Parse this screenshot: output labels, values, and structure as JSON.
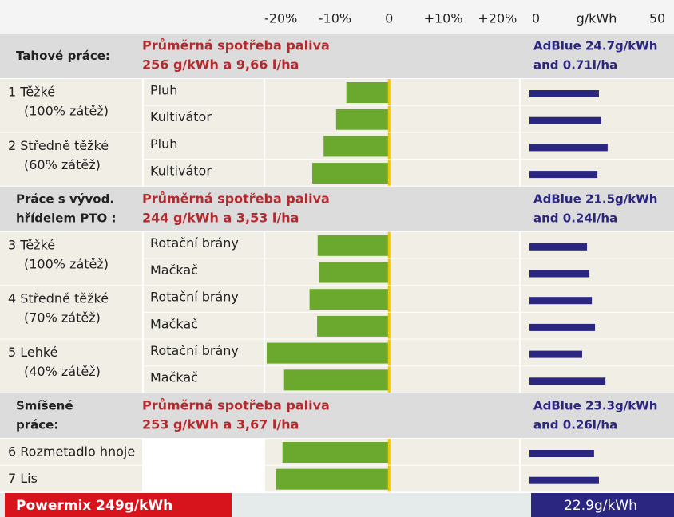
{
  "chart_data": {
    "type": "bar",
    "xticks": [
      {
        "value": -20,
        "label": "-20%"
      },
      {
        "value": -10,
        "label": "-10%"
      },
      0,
      {
        "value": 10,
        "label": "+10%"
      },
      {
        "value": 20,
        "label": "+20%"
      }
    ],
    "xlim": [
      -22.9,
      24
    ],
    "x2ticks": [
      0,
      50
    ],
    "x2lim": [
      0,
      50
    ],
    "x2label": "g/kWh",
    "bar_color": "#6aa82e",
    "bar2_color": "#2b2680",
    "sections": [
      {
        "title_lines": [
          "Tahové práce:"
        ],
        "fuel_lines": [
          "Průměrná spotřeba paliva",
          "256 g/kWh a 9,66 l/ha"
        ],
        "adblue_lines": [
          "AdBlue 24.7g/kWh",
          "and 0.71l/ha"
        ],
        "groups": [
          {
            "label_lines": [
              "1 Těžké",
              "(100% zátěž)"
            ],
            "rows": [
              {
                "name": "Pluh",
                "change": -7.9,
                "adblue": 28.6
              },
              {
                "name": "Kultivátor",
                "change": -9.8,
                "adblue": 29.6
              }
            ]
          },
          {
            "label_lines": [
              "2 Středně těžké",
              "(60% zátěž)"
            ],
            "rows": [
              {
                "name": "Pluh",
                "change": -12.1,
                "adblue": 32.2
              },
              {
                "name": "Kultivátor",
                "change": -14.2,
                "adblue": 28
              }
            ]
          }
        ]
      },
      {
        "title_lines": [
          "Práce s vývod.",
          "hřídelem PTO :"
        ],
        "fuel_lines": [
          "Průměrná spotřeba paliva",
          "244 g/kWh a 3,53 l/ha"
        ],
        "adblue_lines": [
          "AdBlue 21.5g/kWh",
          "and 0.24l/ha"
        ],
        "groups": [
          {
            "label_lines": [
              "3 Těžké",
              "(100% zátěž)"
            ],
            "rows": [
              {
                "name": "Rotační brány",
                "change": -13.2,
                "adblue": 23.7
              },
              {
                "name": "Mačkač",
                "change": -12.9,
                "adblue": 24.7
              }
            ]
          },
          {
            "label_lines": [
              "4 Středně těžké",
              "(70% zátěž)"
            ],
            "rows": [
              {
                "name": "Rotační brány",
                "change": -14.7,
                "adblue": 25.7
              },
              {
                "name": "Mačkač",
                "change": -13.3,
                "adblue": 27
              }
            ]
          },
          {
            "label_lines": [
              "5 Lehké",
              "(40% zátěž)"
            ],
            "rows": [
              {
                "name": "Rotační brány",
                "change": -22.6,
                "adblue": 21.7
              },
              {
                "name": "Mačkač",
                "change": -19.4,
                "adblue": 31.3
              }
            ]
          }
        ]
      },
      {
        "title_lines": [
          "Smíšené",
          "práce:"
        ],
        "fuel_lines": [
          "Průměrná spotřeba paliva",
          "253 g/kWh a 3,67 l/ha"
        ],
        "adblue_lines": [
          "AdBlue 23.3g/kWh",
          "and 0.26l/ha"
        ],
        "groups": [
          {
            "label_lines": [
              "6 Rozmetadlo hnoje"
            ],
            "rows": [
              {
                "change": -19.7,
                "adblue": 26.6
              }
            ]
          },
          {
            "label_lines": [
              "7 Lis"
            ],
            "rows": [
              {
                "change": -20.9,
                "adblue": 28.6
              }
            ]
          }
        ]
      }
    ],
    "footer_left": "Powermix 249g/kWh",
    "footer_right": "22.9g/kWh"
  }
}
